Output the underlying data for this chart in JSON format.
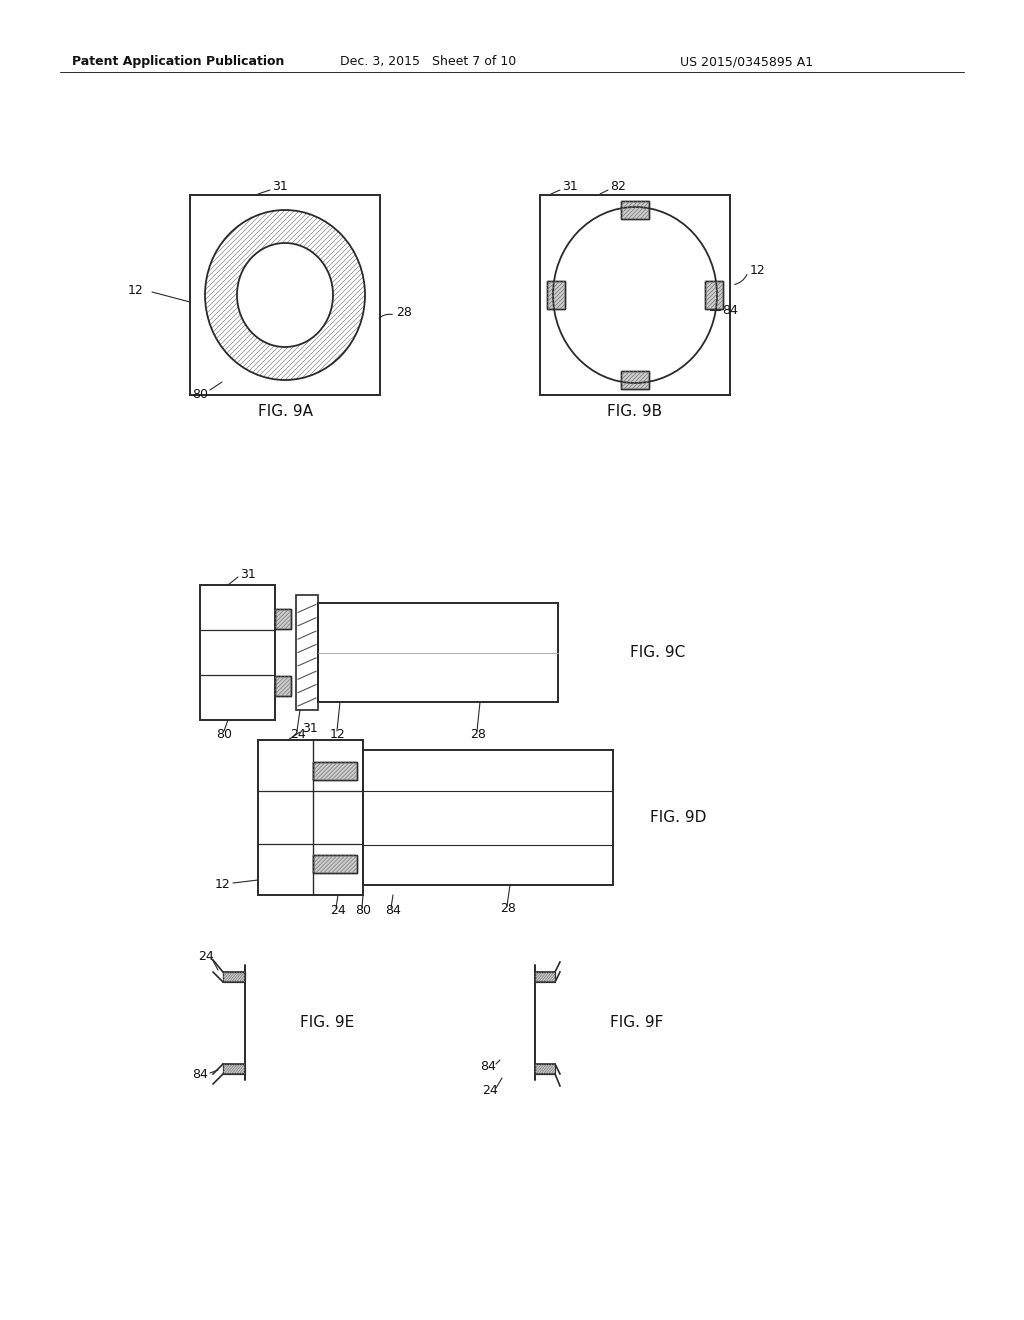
{
  "bg_color": "#ffffff",
  "lc": "#2a2a2a",
  "header_left": "Patent Application Publication",
  "header_mid": "Dec. 3, 2015   Sheet 7 of 10",
  "header_right": "US 2015/0345895 A1",
  "fig9a_label": "FIG. 9A",
  "fig9b_label": "FIG. 9B",
  "fig9c_label": "FIG. 9C",
  "fig9d_label": "FIG. 9D",
  "fig9e_label": "FIG. 9E",
  "fig9f_label": "FIG. 9F"
}
